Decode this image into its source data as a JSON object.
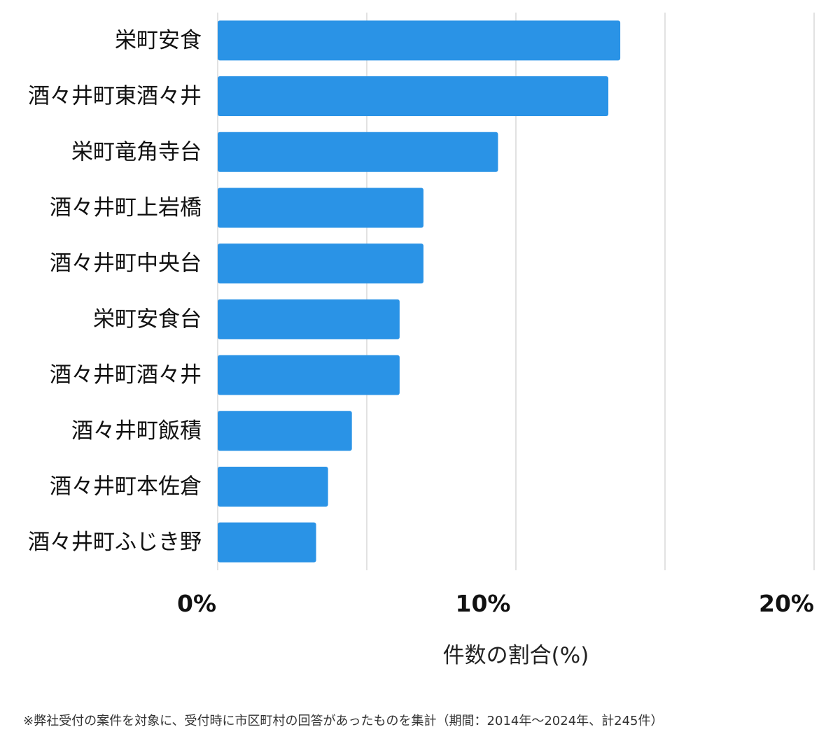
{
  "chart_data": {
    "type": "bar",
    "orientation": "horizontal",
    "categories": [
      "栄町安食",
      "酒々井町東酒々井",
      "栄町竜角寺台",
      "酒々井町上岩橋",
      "酒々井町中央台",
      "栄町安食台",
      "酒々井町酒々井",
      "酒々井町飯積",
      "酒々井町本佐倉",
      "酒々井町ふじき野"
    ],
    "values": [
      13.5,
      13.1,
      9.4,
      6.9,
      6.9,
      6.1,
      6.1,
      4.5,
      3.7,
      3.3
    ],
    "xlim": [
      0,
      20
    ],
    "xticks": [
      0,
      10,
      20
    ],
    "xtick_labels": [
      "0%",
      "10%",
      "20%"
    ],
    "gridlines": [
      0,
      5,
      10,
      15,
      20
    ],
    "xlabel": "件数の割合(%)",
    "ylabel": "",
    "bar_color": "#2a93e6",
    "grid": true
  },
  "footnote": "※弊社受付の案件を対象に、受付時に市区町村の回答があったものを集計（期間：2014年～2024年、計245件）"
}
